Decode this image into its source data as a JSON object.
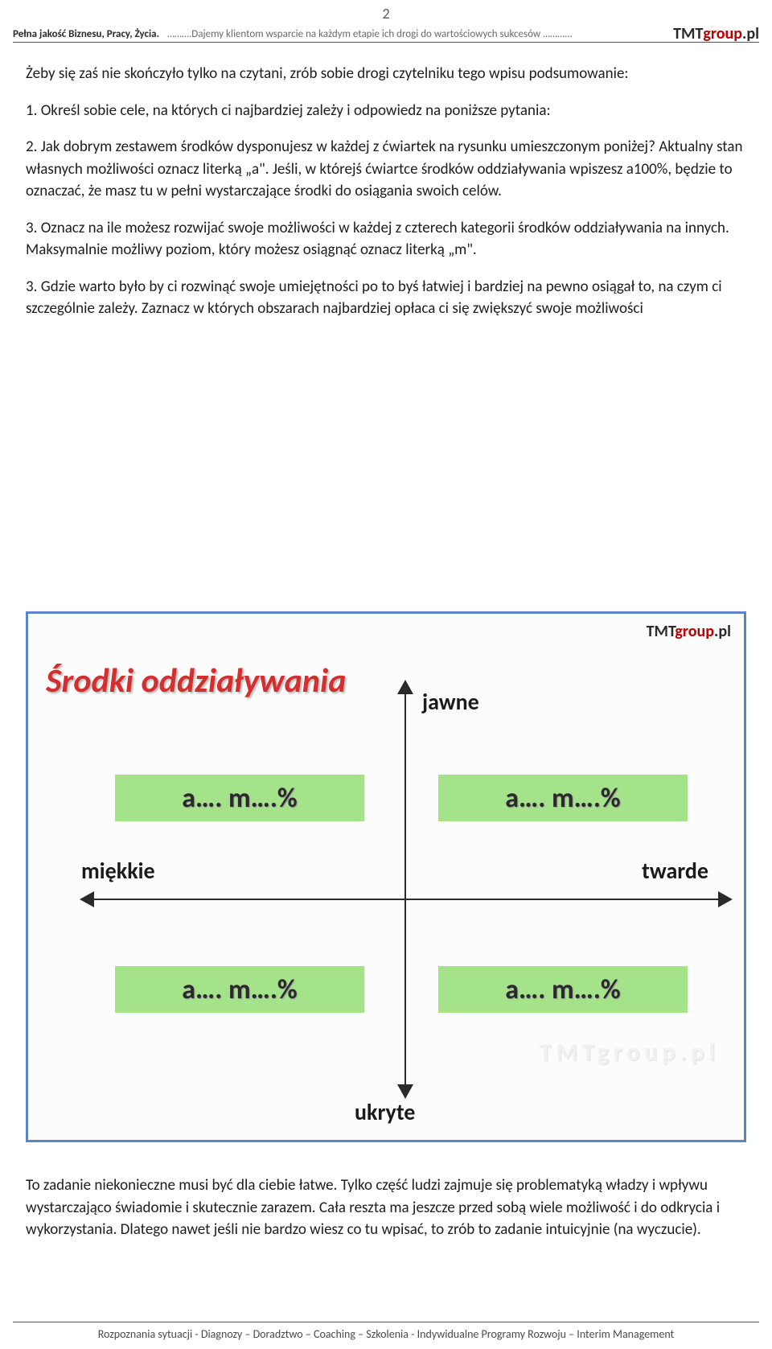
{
  "page_number": "2",
  "header": {
    "left_bold": "Pełna jakość Biznesu, Pracy, Życia.",
    "middle": "  ……….Dajemy klientom wsparcie na każdym etapie ich drogi do wartościowych sukcesów ………...",
    "logo": {
      "part1": "TMT",
      "part2": "group",
      "part3": ".pl"
    }
  },
  "body": {
    "p1": "Żeby się zaś nie skończyło tylko na czytani, zrób sobie drogi czytelniku tego wpisu podsumowanie:",
    "p2": "1. Określ sobie cele, na których ci najbardziej zależy i odpowiedz na poniższe pytania:",
    "p3": "2. Jak dobrym zestawem środków dysponujesz w każdej z ćwiartek na rysunku umieszczonym poniżej? Aktualny stan własnych możliwości oznacz literką „a\". Jeśli, w którejś ćwiartce środków oddziaływania wpiszesz a100%, będzie to oznaczać, że masz tu w pełni wystarczające środki do osiągania swoich celów.",
    "p4": "3. Oznacz na ile możesz rozwijać swoje możliwości w każdej z czterech kategorii środków oddziaływania na innych. Maksymalnie możliwy poziom, który możesz osiągnąć oznacz literką „m\".",
    "p5": "3. Gdzie warto było by ci rozwinąć swoje umiejętności po to byś łatwiej i bardziej na pewno osiągał to, na czym ci szczególnie zależy. Zaznacz w których obszarach  najbardziej opłaca ci się zwiększyć swoje możliwości"
  },
  "diagram": {
    "title": "Środki oddziaływania",
    "logo": {
      "part1": "TMT",
      "part2": "group",
      "part3": ".pl"
    },
    "axis_top": "jawne",
    "axis_bottom": "ukryte",
    "axis_left": "miękkie",
    "axis_right": "twarde",
    "quadrant_label": "a…. m….%",
    "box_bg": "#a5e38b",
    "border_color": "#5a85c7",
    "title_color": "#d32f2f",
    "axis_color": "#2a2a2a",
    "watermark": "TMTgroup.pl"
  },
  "footer_para": "To zadanie niekonieczne musi być dla ciebie łatwe. Tylko część ludzi zajmuje się problematyką władzy i wpływu wystarczająco świadomie i skutecznie zarazem. Cała reszta ma jeszcze przed sobą wiele możliwość i do odkrycia i wykorzystania. Dlatego nawet jeśli nie bardzo wiesz co tu wpisać, to zrób to zadanie intuicyjnie (na wyczucie).",
  "bottom_line": "Rozpoznania sytuacji  -  Diagnozy –  Doradztwo –  Coaching –   Szkolenia  -  Indywidualne Programy Rozwoju –   Interim Management"
}
